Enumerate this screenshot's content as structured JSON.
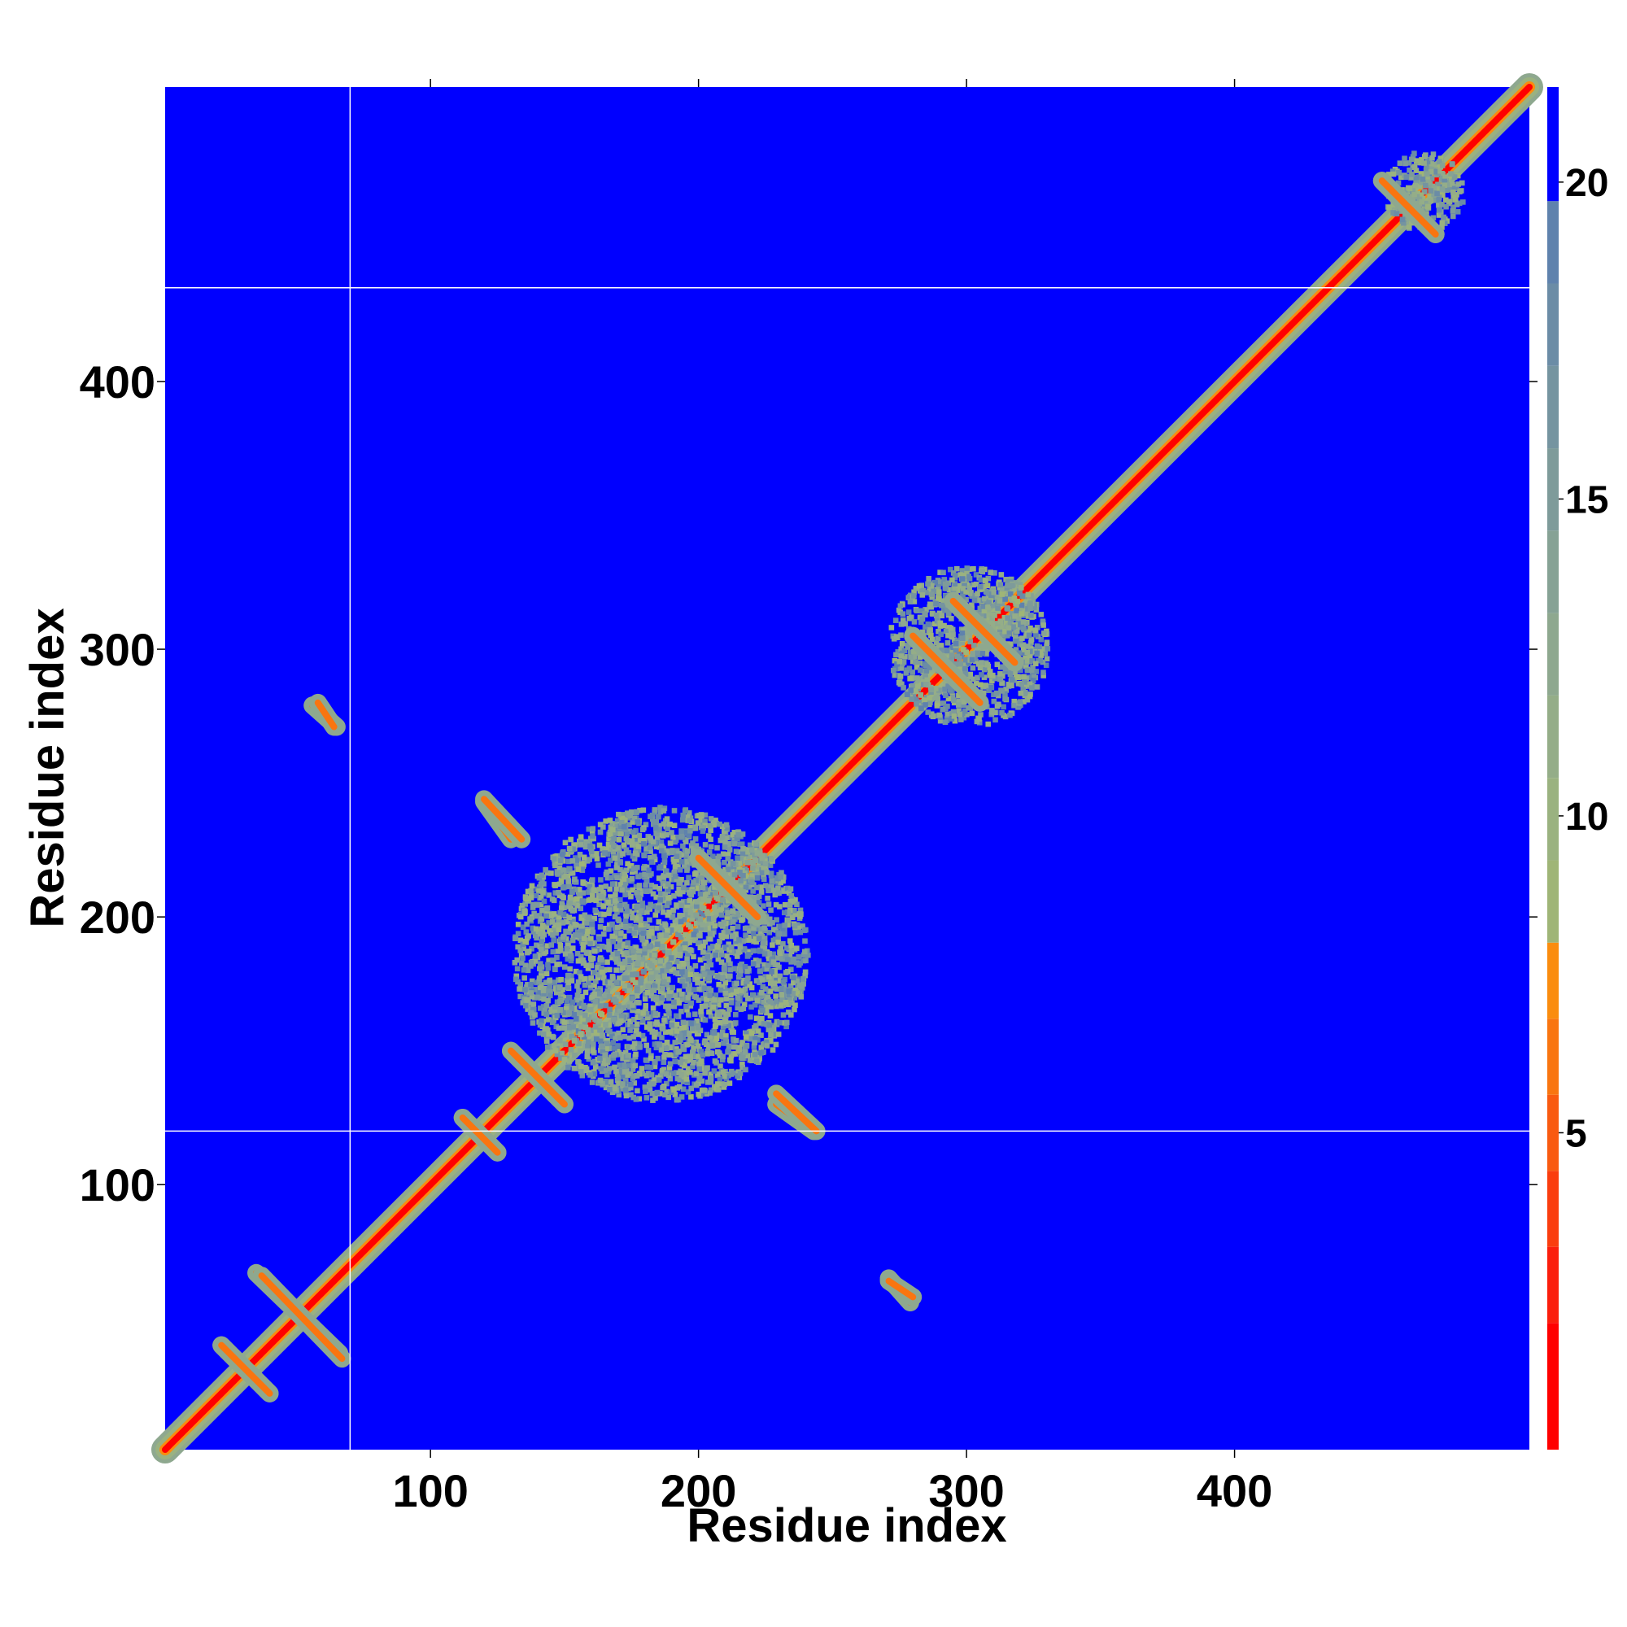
{
  "chart_data": {
    "type": "heatmap",
    "title": "",
    "xlabel": "Residue index",
    "ylabel": "Residue index",
    "xlim": [
      1,
      510
    ],
    "ylim": [
      1,
      510
    ],
    "x_ticks": [
      100,
      200,
      300,
      400
    ],
    "y_ticks": [
      100,
      200,
      300,
      400
    ],
    "x_tick_labels": [
      "100",
      "200",
      "300",
      "400"
    ],
    "y_tick_labels": [
      "100",
      "200",
      "300",
      "400"
    ],
    "domain_boundaries": [
      70,
      120,
      435
    ],
    "colorbar": {
      "ticks": [
        5,
        10,
        15,
        20
      ],
      "tick_labels": [
        "5",
        "10",
        "15",
        "20"
      ],
      "range": [
        0,
        21.5
      ],
      "levels": [
        {
          "min": 0,
          "max": 2,
          "color": "#ff0000"
        },
        {
          "min": 2,
          "max": 3.2,
          "color": "#fb1e0c"
        },
        {
          "min": 3.2,
          "max": 4.4,
          "color": "#fa3d0e"
        },
        {
          "min": 4.4,
          "max": 5.6,
          "color": "#f95a10"
        },
        {
          "min": 5.6,
          "max": 6.8,
          "color": "#f97510"
        },
        {
          "min": 6.8,
          "max": 8,
          "color": "#fa8c0e"
        },
        {
          "min": 8,
          "max": 9.3,
          "color": "#9fb577"
        },
        {
          "min": 9.3,
          "max": 10.6,
          "color": "#9ab280"
        },
        {
          "min": 10.6,
          "max": 11.9,
          "color": "#94ad88"
        },
        {
          "min": 11.9,
          "max": 13.2,
          "color": "#8ea88f"
        },
        {
          "min": 13.2,
          "max": 14.5,
          "color": "#86a295"
        },
        {
          "min": 14.5,
          "max": 15.8,
          "color": "#7e9b9a"
        },
        {
          "min": 15.8,
          "max": 17.1,
          "color": "#7594a0"
        },
        {
          "min": 17.1,
          "max": 18.4,
          "color": "#6b8ca6"
        },
        {
          "min": 18.4,
          "max": 19.7,
          "color": "#5f82ad"
        },
        {
          "min": 19.7,
          "max": 21.5,
          "color": "#0000ff"
        }
      ]
    },
    "background_color": "#0000ff",
    "diagonal_color": "#ff0000",
    "features": [
      {
        "kind": "diagonal_band",
        "from": 1,
        "to": 510
      },
      {
        "kind": "antiparallel_contact",
        "x1": 22,
        "y1": 40,
        "x2": 40,
        "y2": 22
      },
      {
        "kind": "antiparallel_contact",
        "x1": 112,
        "y1": 125,
        "x2": 125,
        "y2": 112
      },
      {
        "kind": "antiparallel_contact",
        "x1": 130,
        "y1": 150,
        "x2": 150,
        "y2": 130
      },
      {
        "kind": "antiparallel_contact",
        "x1": 200,
        "y1": 222,
        "x2": 222,
        "y2": 200
      },
      {
        "kind": "antiparallel_contact",
        "x1": 280,
        "y1": 305,
        "x2": 305,
        "y2": 280
      },
      {
        "kind": "antiparallel_contact",
        "x1": 295,
        "y1": 318,
        "x2": 318,
        "y2": 295
      },
      {
        "kind": "antiparallel_contact",
        "x1": 455,
        "y1": 475,
        "x2": 475,
        "y2": 455
      },
      {
        "kind": "parallel_contact",
        "x1": 120,
        "y1": 243,
        "x2": 130,
        "y2": 229
      },
      {
        "kind": "parallel_contact",
        "x1": 229,
        "y1": 134,
        "x2": 244,
        "y2": 120
      },
      {
        "kind": "parallel_contact",
        "x1": 56,
        "y1": 279,
        "x2": 65,
        "y2": 271
      },
      {
        "kind": "parallel_contact",
        "x1": 271,
        "y1": 64,
        "x2": 280,
        "y2": 58
      },
      {
        "kind": "parallel_contact",
        "x1": 35,
        "y1": 67,
        "x2": 66,
        "y2": 37
      },
      {
        "kind": "cluster",
        "cx": 185,
        "cy": 185,
        "rx": 55,
        "ry": 55
      },
      {
        "kind": "cluster",
        "cx": 300,
        "cy": 300,
        "rx": 30,
        "ry": 30
      },
      {
        "kind": "cluster",
        "cx": 470,
        "cy": 470,
        "rx": 15,
        "ry": 15
      }
    ]
  }
}
